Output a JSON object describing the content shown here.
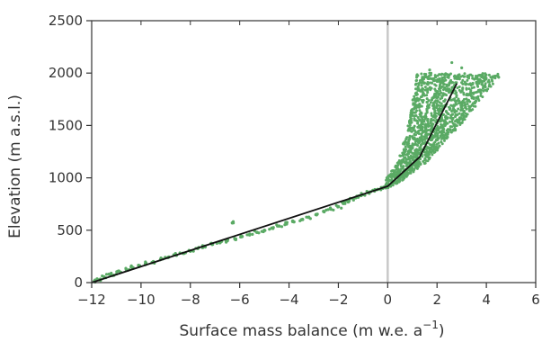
{
  "chart_data": {
    "type": "scatter",
    "title": "",
    "xlabel": "Surface mass balance (m w.e. a",
    "xlabel_superscript": "−1",
    "xlabel_close": ")",
    "ylabel": "Elevation (m a.s.l.)",
    "xlim": [
      -12,
      6
    ],
    "ylim": [
      0,
      2500
    ],
    "x_ticks": [
      -12,
      -10,
      -8,
      -6,
      -4,
      -2,
      0,
      2,
      4,
      6
    ],
    "x_tick_labels": [
      "−12",
      "−10",
      "−8",
      "−6",
      "−4",
      "−2",
      "0",
      "2",
      "4",
      "6"
    ],
    "y_ticks": [
      0,
      500,
      1000,
      1500,
      2000,
      2500
    ],
    "y_tick_labels": [
      "0",
      "500",
      "1000",
      "1500",
      "2000",
      "2500"
    ],
    "grid": false,
    "legend": "none",
    "vertical_reference_line": {
      "x": 0,
      "color": "#c8c8c8"
    },
    "colors": {
      "scatter": "#5aaa64",
      "fit_line": "#111111",
      "axes": "#333333"
    },
    "series": [
      {
        "type": "scatter",
        "lower_branch": [
          [
            -11.9,
            10
          ],
          [
            -11.7,
            25
          ],
          [
            -11.5,
            55
          ],
          [
            -11.3,
            80
          ],
          [
            -11.1,
            70
          ],
          [
            -10.9,
            110
          ],
          [
            -10.6,
            125
          ],
          [
            -10.4,
            150
          ],
          [
            -10.1,
            165
          ],
          [
            -9.8,
            185
          ],
          [
            -9.5,
            200
          ],
          [
            -9.2,
            225
          ],
          [
            -8.9,
            240
          ],
          [
            -8.6,
            265
          ],
          [
            -8.3,
            280
          ],
          [
            -8.0,
            300
          ],
          [
            -7.7,
            325
          ],
          [
            -7.4,
            340
          ],
          [
            -7.1,
            365
          ],
          [
            -6.8,
            380
          ],
          [
            -6.5,
            400
          ],
          [
            -6.3,
            570
          ],
          [
            -6.2,
            420
          ],
          [
            -5.9,
            440
          ],
          [
            -5.6,
            455
          ],
          [
            -5.3,
            480
          ],
          [
            -5.0,
            500
          ],
          [
            -4.7,
            520
          ],
          [
            -4.4,
            540
          ],
          [
            -4.1,
            560
          ],
          [
            -3.8,
            580
          ],
          [
            -3.5,
            600
          ],
          [
            -3.2,
            625
          ],
          [
            -2.9,
            650
          ],
          [
            -2.6,
            680
          ],
          [
            -2.3,
            700
          ],
          [
            -2.0,
            725
          ],
          [
            -1.8,
            755
          ],
          [
            -1.6,
            770
          ],
          [
            -1.4,
            800
          ],
          [
            -1.2,
            815
          ],
          [
            -1.0,
            840
          ],
          [
            -0.8,
            860
          ],
          [
            -0.6,
            880
          ],
          [
            -0.4,
            890
          ],
          [
            -0.2,
            900
          ],
          [
            -0.1,
            915
          ]
        ],
        "upper_cloud": {
          "x_range": [
            -0.1,
            4.6
          ],
          "y_range": [
            900,
            2100
          ],
          "trend": [
            [
              0,
              920
            ],
            [
              1.0,
              1150
            ],
            [
              2.0,
              1550
            ],
            [
              2.7,
              1900
            ]
          ],
          "points": 1400
        }
      },
      {
        "type": "line",
        "x": [
          -12,
          0,
          1.3,
          2.8
        ],
        "y": [
          0,
          920,
          1200,
          1900
        ]
      }
    ]
  }
}
